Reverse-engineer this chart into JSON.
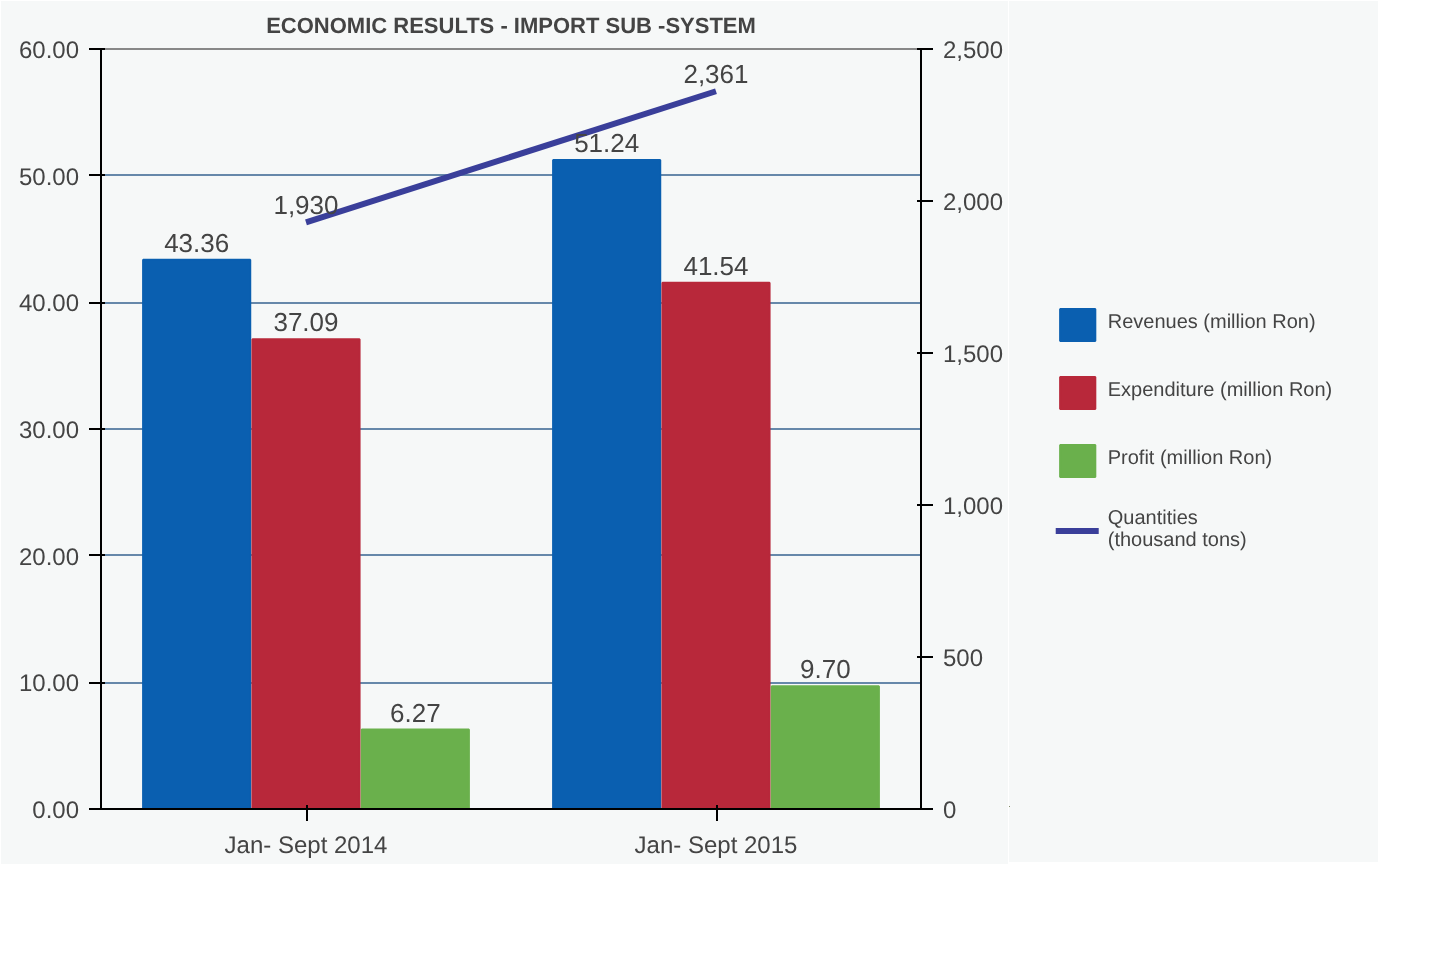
{
  "chart_data": {
    "type": "bar",
    "title": "ECONOMIC RESULTS - IMPORT SUB -SYSTEM",
    "categories": [
      "Jan- Sept 2014",
      "Jan- Sept 2015"
    ],
    "series": [
      {
        "name": "Revenues (million Ron)",
        "color": "#0a5fb0",
        "values": [
          43.36,
          51.24
        ]
      },
      {
        "name": "Expenditure (million Ron)",
        "color": "#b8283a",
        "values": [
          37.09,
          41.54
        ]
      },
      {
        "name": "Profit (million Ron)",
        "color": "#6ab04c",
        "values": [
          6.27,
          9.7
        ],
        "value_labels": [
          "6.27",
          "9.70"
        ]
      },
      {
        "name": "Quantities\n(thousand tons)",
        "type": "line",
        "axis": "y2",
        "color": "#3a3f9a",
        "values": [
          1930,
          2361
        ],
        "value_labels": [
          "1,930",
          "2,361"
        ]
      }
    ],
    "data_labels": true,
    "ylim": [
      0,
      60
    ],
    "yticks": [
      {
        "value": 0,
        "label": "0.00"
      },
      {
        "value": 10,
        "label": "10.00"
      },
      {
        "value": 20,
        "label": "20.00"
      },
      {
        "value": 30,
        "label": "30.00"
      },
      {
        "value": 40,
        "label": "40.00"
      },
      {
        "value": 50,
        "label": "50.00"
      },
      {
        "value": 60,
        "label": "60.00"
      }
    ],
    "y2lim": [
      0,
      2500
    ],
    "y2ticks": [
      0,
      500,
      {
        "value": 1000,
        "label": "1,000"
      },
      {
        "value": 1500,
        "label": "1,500"
      },
      {
        "value": 2000,
        "label": "2,000"
      },
      {
        "value": 2500,
        "label": "2,500"
      }
    ],
    "grid": "y",
    "legend": "right"
  }
}
